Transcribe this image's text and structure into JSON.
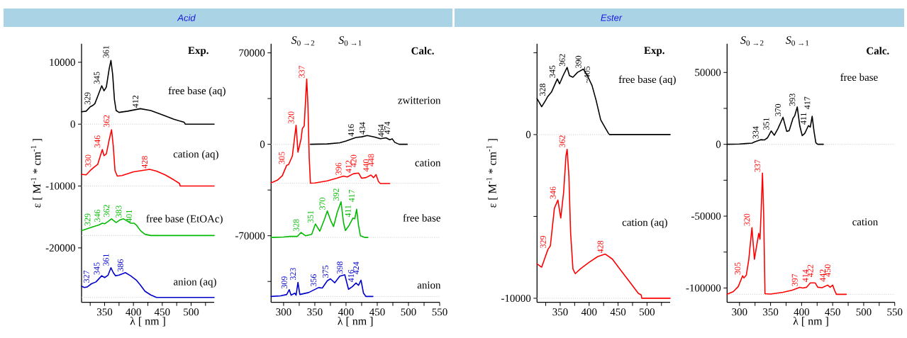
{
  "chart_data": [
    {
      "type": "line",
      "title": "Acid",
      "subtitle": "Exp.",
      "xlabel": "λ [ nm ]",
      "ylabel": "ε [ M$^{-1}$ * cm$^{-1}$ ]",
      "xlim": [
        310,
        540
      ],
      "ylim": [
        -28800,
        13000
      ],
      "xticks": [
        {
          "value": 325,
          "label": null
        },
        350,
        {
          "value": 375,
          "label": null
        },
        400,
        {
          "value": 425,
          "label": null
        },
        450,
        {
          "value": 475,
          "label": null
        },
        500,
        {
          "value": 525,
          "label": null
        }
      ],
      "yticks": [
        -20000,
        -10000,
        0,
        10000
      ],
      "ref_lines": [
        {
          "axis": "y",
          "value": 0,
          "color": "#c8c8c8",
          "line_style": "dotted"
        },
        {
          "axis": "y",
          "value": -10000,
          "color": "#c8c8c8",
          "line_style": "dotted"
        },
        {
          "axis": "y",
          "value": -18000,
          "color": "#c8c8c8",
          "line_style": "dotted"
        },
        {
          "axis": "y",
          "value": -28000,
          "color": "#c8c8c8",
          "line_style": "dotted"
        }
      ],
      "series": [
        {
          "name": "free base (aq)",
          "color": "#000000",
          "x": [
            310,
            318,
            325,
            329,
            333,
            338,
            345,
            349,
            353,
            358,
            361,
            364,
            367,
            370,
            375,
            390,
            412,
            430,
            450,
            470,
            488,
            490,
            540
          ],
          "values": [
            2000,
            2100,
            2800,
            3000,
            3300,
            4500,
            6200,
            5400,
            6000,
            9000,
            10300,
            8000,
            4000,
            2200,
            1900,
            2100,
            2500,
            2200,
            1500,
            800,
            300,
            0,
            0
          ]
        },
        {
          "name": "cation (aq)",
          "color": "#ff0000",
          "x": [
            310,
            318,
            325,
            330,
            338,
            346,
            349,
            353,
            358,
            362,
            365,
            368,
            372,
            380,
            400,
            428,
            440,
            455,
            470,
            480,
            481,
            540
          ],
          "values": [
            -8100,
            -8200,
            -7500,
            -7100,
            -6500,
            -4100,
            -5100,
            -4800,
            -2500,
            -900,
            -3500,
            -7500,
            -8400,
            -8300,
            -7700,
            -7300,
            -7600,
            -8200,
            -9000,
            -9600,
            -10000,
            -10000
          ]
        },
        {
          "name": "free base (EtOAc)",
          "color": "#00bb00",
          "x": [
            310,
            320,
            329,
            340,
            346,
            350,
            355,
            362,
            370,
            376,
            383,
            390,
            395,
            401,
            405,
            412,
            420,
            430,
            540
          ],
          "values": [
            -17200,
            -16900,
            -16600,
            -16300,
            -16000,
            -16100,
            -15800,
            -15300,
            -15900,
            -15500,
            -15300,
            -15700,
            -16000,
            -16000,
            -16300,
            -17200,
            -17800,
            -18000,
            -18000
          ]
        },
        {
          "name": "anion (aq)",
          "color": "#0000cc",
          "x": [
            310,
            315,
            320,
            327,
            335,
            345,
            350,
            356,
            361,
            365,
            369,
            375,
            386,
            395,
            405,
            412,
            420,
            430,
            440,
            540
          ],
          "values": [
            -26200,
            -26400,
            -26300,
            -25800,
            -25500,
            -24500,
            -24800,
            -24400,
            -23200,
            -24000,
            -24500,
            -24400,
            -24000,
            -24500,
            -25200,
            -26000,
            -27000,
            -27600,
            -28000,
            -28000
          ]
        }
      ],
      "annotations": [
        {
          "text": "329",
          "x": 329,
          "y": 3000
        },
        {
          "text": "345",
          "x": 345,
          "y": 6200
        },
        {
          "text": "361",
          "x": 361,
          "y": 10300
        },
        {
          "text": "412",
          "x": 412,
          "y": 2500
        },
        {
          "text": "330",
          "x": 330,
          "y": -7100
        },
        {
          "text": "346",
          "x": 346,
          "y": -4100
        },
        {
          "text": "362",
          "x": 362,
          "y": -900
        },
        {
          "text": "428",
          "x": 428,
          "y": -7300
        },
        {
          "text": "329",
          "x": 329,
          "y": -16600
        },
        {
          "text": "346",
          "x": 346,
          "y": -16000
        },
        {
          "text": "362",
          "x": 362,
          "y": -15300
        },
        {
          "text": "383",
          "x": 383,
          "y": -15300
        },
        {
          "text": "401",
          "x": 401,
          "y": -16000
        },
        {
          "text": "327",
          "x": 327,
          "y": -25800
        },
        {
          "text": "345",
          "x": 345,
          "y": -24500
        },
        {
          "text": "361",
          "x": 361,
          "y": -23200
        },
        {
          "text": "386",
          "x": 386,
          "y": -24000
        }
      ]
    },
    {
      "type": "line",
      "subtitle": "Calc.",
      "xlabel": "λ [ nm ]",
      "xlim": [
        280,
        550
      ],
      "ylim": [
        -121000,
        77000
      ],
      "xticks": [
        300,
        {
          "value": 325,
          "label": null
        },
        350,
        {
          "value": 375,
          "label": null
        },
        400,
        {
          "value": 425,
          "label": null
        },
        450,
        {
          "value": 475,
          "label": null
        },
        500,
        {
          "value": 525,
          "label": null
        },
        550
      ],
      "yticks": [
        {
          "value": -105000,
          "label": null
        },
        -70000,
        {
          "value": -35000,
          "label": null
        },
        0,
        {
          "value": 35000,
          "label": null
        },
        70000
      ],
      "ref_lines": [
        {
          "axis": "y",
          "value": 0,
          "color": "#c8c8c8",
          "line_style": "dotted"
        },
        {
          "axis": "y",
          "value": -29800,
          "color": "#c8c8c8",
          "line_style": "dotted"
        },
        {
          "axis": "y",
          "value": -71300,
          "color": "#c8c8c8",
          "line_style": "dotted"
        },
        {
          "axis": "y",
          "value": -116500,
          "color": "#c8c8c8",
          "line_style": "dotted"
        }
      ],
      "series": [
        {
          "name": "zwitterion",
          "color": "#000000",
          "x": [
            343,
            370,
            390,
            400,
            416,
            425,
            434,
            445,
            455,
            464,
            470,
            474,
            478,
            485,
            498
          ],
          "values": [
            0,
            300,
            1200,
            2500,
            5200,
            5700,
            6700,
            5600,
            4300,
            5000,
            3500,
            4200,
            1500,
            0,
            0
          ]
        },
        {
          "name": "cation",
          "color": "#ff0000",
          "x": [
            280,
            290,
            298,
            305,
            308,
            314,
            320,
            323,
            328,
            330,
            333,
            337,
            339,
            341,
            343,
            350,
            370,
            385,
            396,
            402,
            412,
            420,
            425,
            432,
            440,
            444,
            448,
            452,
            455,
            470
          ],
          "values": [
            -29500,
            -27500,
            -24000,
            -16000,
            -15500,
            -9000,
            14500,
            -6000,
            4000,
            12000,
            14000,
            50000,
            30000,
            -10000,
            -29800,
            -29600,
            -28000,
            -26000,
            -24300,
            -25000,
            -22500,
            -22000,
            -26000,
            -25500,
            -23500,
            -25500,
            -23200,
            -28500,
            -30000,
            -30000
          ]
        },
        {
          "name": "free base",
          "color": "#00bb00",
          "x": [
            280,
            300,
            310,
            322,
            328,
            335,
            345,
            351,
            358,
            365,
            370,
            376,
            380,
            386,
            392,
            396,
            399,
            405,
            411,
            414,
            417,
            420,
            423,
            430,
            435
          ],
          "values": [
            -71300,
            -71000,
            -70500,
            -70500,
            -67500,
            -70000,
            -69000,
            -61000,
            -66500,
            -58000,
            -51000,
            -59000,
            -63000,
            -52000,
            -44000,
            -60000,
            -66000,
            -62000,
            -56500,
            -57000,
            -49700,
            -62000,
            -70000,
            -71300,
            -71300
          ]
        },
        {
          "name": "anion",
          "color": "#0000cc",
          "x": [
            280,
            295,
            305,
            309,
            312,
            318,
            320,
            323,
            326,
            340,
            356,
            362,
            370,
            375,
            382,
            390,
            398,
            404,
            410,
            416,
            420,
            424,
            428,
            432,
            443
          ],
          "values": [
            -116500,
            -116000,
            -115000,
            -111300,
            -115500,
            -114000,
            -115500,
            -105700,
            -115000,
            -113500,
            -109700,
            -110000,
            -104500,
            -103000,
            -106000,
            -101000,
            -99900,
            -111000,
            -109000,
            -106200,
            -108000,
            -104000,
            -114000,
            -116500,
            -116500
          ]
        }
      ],
      "annotations": [
        "*S*$_{0 →2}$",
        "*S*$_{0 →1}$",
        {
          "text": "416",
          "x": 416,
          "y": 5200
        },
        {
          "text": "434",
          "x": 434,
          "y": 6700
        },
        {
          "text": "464",
          "x": 464,
          "y": 5000
        },
        {
          "text": "474",
          "x": 474,
          "y": 4200
        },
        {
          "text": "305",
          "x": 305,
          "y": -16000
        },
        {
          "text": "320",
          "x": 320,
          "y": 14500
        },
        {
          "text": "337",
          "x": 337,
          "y": 50000
        },
        {
          "text": "396",
          "x": 396,
          "y": -24300
        },
        {
          "text": "412",
          "x": 412,
          "y": -22500
        },
        {
          "text": "420",
          "x": 420,
          "y": -22000
        },
        {
          "text": "440",
          "x": 440,
          "y": -23500
        },
        {
          "text": "448",
          "x": 448,
          "y": -23200
        },
        {
          "text": "328",
          "x": 328,
          "y": -67500
        },
        {
          "text": "351",
          "x": 351,
          "y": -61000
        },
        {
          "text": "370",
          "x": 370,
          "y": -51000
        },
        {
          "text": "392",
          "x": 392,
          "y": -44000
        },
        {
          "text": "411",
          "x": 411,
          "y": -56500
        },
        {
          "text": "417",
          "x": 417,
          "y": -49700
        },
        {
          "text": "309",
          "x": 309,
          "y": -111300
        },
        {
          "text": "323",
          "x": 323,
          "y": -105700
        },
        {
          "text": "356",
          "x": 356,
          "y": -109700
        },
        {
          "text": "375",
          "x": 375,
          "y": -103000
        },
        {
          "text": "398",
          "x": 398,
          "y": -99900
        },
        {
          "text": "416",
          "x": 416,
          "y": -106200
        },
        {
          "text": "424",
          "x": 424,
          "y": -104000
        }
      ]
    },
    {
      "type": "line",
      "title": "Ester",
      "subtitle": "Exp.",
      "ylabel": "ε [ M$^{-1}$ * cm$^{-1}$ ]",
      "xlim": [
        310,
        540
      ],
      "ylim": [
        -10250,
        5550
      ],
      "xticks": [
        {
          "value": 325,
          "label": null
        },
        350,
        {
          "value": 375,
          "label": null
        },
        400,
        {
          "value": 425,
          "label": null
        },
        450,
        {
          "value": 475,
          "label": null
        },
        500,
        {
          "value": 525,
          "label": null
        }
      ],
      "yticks": [
        -10000,
        {
          "value": -5000,
          "label": null
        },
        0,
        {
          "value": 5000,
          "label": null
        }
      ],
      "ref_lines": [
        {
          "axis": "y",
          "value": 0,
          "color": "#c8c8c8",
          "line_style": "dotted"
        },
        {
          "axis": "y",
          "value": -10000,
          "color": "#c8c8c8",
          "line_style": "dotted"
        }
      ],
      "series": [
        {
          "name": "free base (aq)",
          "color": "#000000",
          "x": [
            310,
            318,
            325,
            328,
            335,
            340,
            345,
            349,
            355,
            362,
            366,
            372,
            380,
            390,
            397,
            405,
            412,
            420,
            428,
            433,
            435,
            540
          ],
          "values": [
            2200,
            1700,
            2100,
            2300,
            2600,
            3000,
            3400,
            3100,
            3600,
            4100,
            3600,
            3500,
            3800,
            4000,
            3600,
            3000,
            2100,
            900,
            400,
            100,
            0,
            0
          ]
        },
        {
          "name": "cation (aq)",
          "color": "#ff0000",
          "x": [
            310,
            318,
            325,
            329,
            333,
            340,
            346,
            351,
            356,
            360,
            362,
            365,
            368,
            372,
            376,
            385,
            400,
            415,
            428,
            440,
            455,
            470,
            485,
            490,
            491,
            540
          ],
          "values": [
            -7900,
            -8100,
            -7400,
            -7000,
            -6800,
            -4500,
            -4000,
            -5100,
            -3500,
            -1300,
            -900,
            -2500,
            -6000,
            -8200,
            -8500,
            -8200,
            -7800,
            -7450,
            -7300,
            -7600,
            -8300,
            -9000,
            -9700,
            -9800,
            -10000,
            -10000
          ]
        }
      ],
      "annotations": [
        {
          "text": "328",
          "x": 328,
          "y": 2300
        },
        {
          "text": "345",
          "x": 345,
          "y": 3400
        },
        {
          "text": "362",
          "x": 362,
          "y": 4100
        },
        {
          "text": "390",
          "x": 390,
          "y": 4000
        },
        {
          "text": "~405",
          "x": 405,
          "y": 3000
        },
        {
          "text": "329",
          "x": 329,
          "y": -7000
        },
        {
          "text": "346",
          "x": 346,
          "y": -4000
        },
        {
          "text": "362",
          "x": 362,
          "y": -900
        },
        {
          "text": "428",
          "x": 428,
          "y": -7300
        }
      ]
    },
    {
      "type": "line",
      "subtitle": "Calc.",
      "xlabel": "λ [ nm ]",
      "xlim": [
        280,
        550
      ],
      "ylim": [
        -110000,
        70000
      ],
      "xticks": [
        300,
        {
          "value": 325,
          "label": null
        },
        350,
        {
          "value": 375,
          "label": null
        },
        400,
        {
          "value": 425,
          "label": null
        },
        450,
        {
          "value": 475,
          "label": null
        },
        500,
        {
          "value": 525,
          "label": null
        },
        550
      ],
      "yticks": [
        -100000,
        {
          "value": -75000,
          "label": null
        },
        -50000,
        {
          "value": -25000,
          "label": null
        },
        0,
        {
          "value": 25000,
          "label": null
        },
        50000
      ],
      "ref_lines": [
        {
          "axis": "y",
          "value": 0,
          "color": "#c8c8c8",
          "line_style": "dotted"
        },
        {
          "axis": "y",
          "value": -104400,
          "color": "#c8c8c8",
          "line_style": "dotted"
        }
      ],
      "series": [
        {
          "name": "free base",
          "color": "#000000",
          "x": [
            280,
            300,
            310,
            320,
            325,
            334,
            340,
            345,
            351,
            356,
            362,
            370,
            376,
            380,
            386,
            389,
            393,
            397,
            401,
            405,
            411,
            414,
            417,
            420,
            423,
            426,
            435
          ],
          "values": [
            0,
            200,
            500,
            800,
            1800,
            3200,
            3000,
            4500,
            9300,
            6300,
            11000,
            18800,
            9000,
            9500,
            18000,
            20000,
            26000,
            13000,
            6000,
            7500,
            13000,
            12000,
            19500,
            9000,
            1000,
            0,
            0
          ]
        },
        {
          "name": "cation",
          "color": "#ff0000",
          "x": [
            280,
            290,
            298,
            305,
            307,
            311,
            315,
            320,
            324,
            329,
            331,
            333,
            335,
            337,
            339,
            341,
            350,
            370,
            385,
            397,
            402,
            408,
            414,
            422,
            426,
            433,
            442,
            446,
            450,
            453,
            456,
            472
          ],
          "values": [
            -104300,
            -102500,
            -99000,
            -91500,
            -93000,
            -91000,
            -80000,
            -58000,
            -80000,
            -67000,
            -62000,
            -66000,
            -45000,
            -20000,
            -50000,
            -104000,
            -104200,
            -103000,
            -101500,
            -99500,
            -100000,
            -99500,
            -96500,
            -96500,
            -99500,
            -99800,
            -98000,
            -99500,
            -98000,
            -101500,
            -104400,
            -104400
          ]
        }
      ],
      "annotations": [
        "*S*$_{0 →2}$",
        "*S*$_{0 →1}$",
        {
          "text": "334",
          "x": 334,
          "y": 3200
        },
        {
          "text": "351",
          "x": 351,
          "y": 9300
        },
        {
          "text": "370",
          "x": 370,
          "y": 18800
        },
        {
          "text": "393",
          "x": 393,
          "y": 26000
        },
        {
          "text": "411",
          "x": 411,
          "y": 13000
        },
        {
          "text": "417",
          "x": 417,
          "y": 19500
        },
        {
          "text": "305",
          "x": 305,
          "y": -91500
        },
        {
          "text": "320",
          "x": 320,
          "y": -58000
        },
        {
          "text": "337",
          "x": 337,
          "y": -20000
        },
        {
          "text": "397",
          "x": 397,
          "y": -99500
        },
        {
          "text": "414",
          "x": 414,
          "y": -96500
        },
        {
          "text": "422",
          "x": 422,
          "y": -96500
        },
        {
          "text": "442",
          "x": 442,
          "y": -98000
        },
        {
          "text": "450",
          "x": 450,
          "y": -98000
        }
      ]
    }
  ]
}
